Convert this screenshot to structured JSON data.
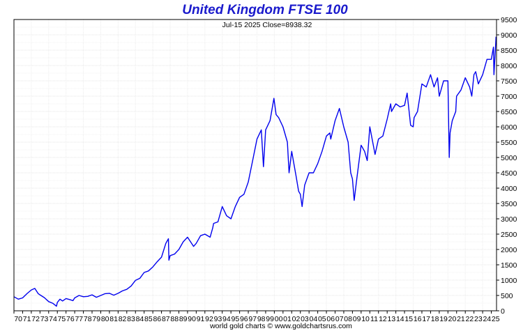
{
  "chart_data": {
    "type": "line",
    "title": "United Kingdom FTSE 100",
    "subtitle": "Jul-15  2025   Close=8938.32",
    "footer": "world gold charts © www.goldchartsrus.com",
    "x_tick_labels": [
      "70",
      "71",
      "72",
      "73",
      "74",
      "75",
      "76",
      "77",
      "78",
      "79",
      "80",
      "81",
      "82",
      "83",
      "84",
      "85",
      "86",
      "87",
      "88",
      "89",
      "90",
      "91",
      "92",
      "93",
      "94",
      "95",
      "96",
      "97",
      "98",
      "99",
      "00",
      "01",
      "02",
      "03",
      "04",
      "05",
      "06",
      "07",
      "08",
      "09",
      "10",
      "11",
      "12",
      "13",
      "14",
      "15",
      "16",
      "17",
      "18",
      "19",
      "20",
      "21",
      "22",
      "23",
      "24",
      "25"
    ],
    "y_tick_labels": [
      "0",
      "500",
      "1000",
      "1500",
      "2000",
      "2500",
      "3000",
      "3500",
      "4000",
      "4500",
      "5000",
      "5500",
      "6000",
      "6500",
      "7000",
      "7500",
      "8000",
      "8500",
      "9000",
      "9500"
    ],
    "xlim": [
      1970.0,
      2025.6
    ],
    "ylim": [
      0,
      9500
    ],
    "grid": true,
    "line_color": "#0000ee",
    "title_color": "#1a1acc",
    "series": [
      {
        "x": [
          1970.0,
          1970.5,
          1971.0,
          1971.5,
          1972.0,
          1972.4,
          1972.8,
          1973.0,
          1973.5,
          1974.0,
          1974.5,
          1974.9,
          1975.0,
          1975.3,
          1975.6,
          1976.0,
          1976.5,
          1976.8,
          1977.0,
          1977.5,
          1978.0,
          1978.5,
          1979.0,
          1979.5,
          1980.0,
          1980.5,
          1981.0,
          1981.5,
          1982.0,
          1982.5,
          1983.0,
          1983.5,
          1984.0,
          1984.5,
          1985.0,
          1985.5,
          1986.0,
          1986.5,
          1987.0,
          1987.5,
          1987.8,
          1987.85,
          1988.0,
          1988.5,
          1989.0,
          1989.5,
          1990.0,
          1990.7,
          1991.0,
          1991.5,
          1992.0,
          1992.6,
          1992.9,
          1993.0,
          1993.5,
          1994.0,
          1994.5,
          1995.0,
          1995.5,
          1996.0,
          1996.5,
          1997.0,
          1997.5,
          1998.0,
          1998.5,
          1998.75,
          1999.0,
          1999.5,
          1999.95,
          2000.2,
          2000.5,
          2001.0,
          2001.5,
          2001.7,
          2002.0,
          2002.5,
          2002.8,
          2003.0,
          2003.2,
          2003.5,
          2004.0,
          2004.5,
          2005.0,
          2005.5,
          2006.0,
          2006.4,
          2006.5,
          2007.0,
          2007.5,
          2008.0,
          2008.5,
          2008.8,
          2009.0,
          2009.2,
          2009.5,
          2010.0,
          2010.4,
          2010.7,
          2011.0,
          2011.6,
          2012.0,
          2012.5,
          2013.0,
          2013.4,
          2013.5,
          2014.0,
          2014.5,
          2015.0,
          2015.3,
          2015.7,
          2016.0,
          2016.1,
          2016.5,
          2017.0,
          2017.5,
          2018.0,
          2018.4,
          2018.8,
          2019.0,
          2019.5,
          2020.0,
          2020.15,
          2020.25,
          2020.5,
          2020.9,
          2021.0,
          2021.5,
          2022.0,
          2022.5,
          2022.75,
          2023.0,
          2023.2,
          2023.5,
          2024.0,
          2024.5,
          2025.0,
          2025.25,
          2025.3,
          2025.5,
          2025.54
        ],
        "y": [
          460,
          380,
          420,
          560,
          680,
          730,
          560,
          520,
          430,
          300,
          240,
          150,
          270,
          380,
          320,
          400,
          360,
          330,
          420,
          500,
          460,
          470,
          520,
          440,
          500,
          560,
          570,
          510,
          570,
          650,
          700,
          810,
          990,
          1060,
          1250,
          1300,
          1430,
          1600,
          1750,
          2200,
          2350,
          1650,
          1800,
          1850,
          2000,
          2250,
          2400,
          2100,
          2200,
          2450,
          2500,
          2400,
          2700,
          2850,
          2900,
          3400,
          3100,
          3000,
          3400,
          3700,
          3800,
          4200,
          4900,
          5600,
          5900,
          4700,
          5900,
          6200,
          6930,
          6400,
          6300,
          6000,
          5500,
          4500,
          5200,
          4400,
          3900,
          3800,
          3400,
          4100,
          4500,
          4500,
          4800,
          5200,
          5700,
          5800,
          5600,
          6200,
          6600,
          6000,
          5500,
          4500,
          4300,
          3600,
          4300,
          5400,
          5200,
          4900,
          6000,
          5100,
          5600,
          5700,
          6250,
          6750,
          6500,
          6750,
          6650,
          6700,
          7100,
          6050,
          6000,
          6300,
          6500,
          7400,
          7300,
          7700,
          7300,
          7600,
          7000,
          7500,
          7500,
          5000,
          5800,
          6200,
          6500,
          7000,
          7200,
          7600,
          7300,
          7000,
          7700,
          7800,
          7400,
          7700,
          8200,
          8200,
          8600,
          7700,
          8700,
          8938
        ]
      }
    ]
  }
}
